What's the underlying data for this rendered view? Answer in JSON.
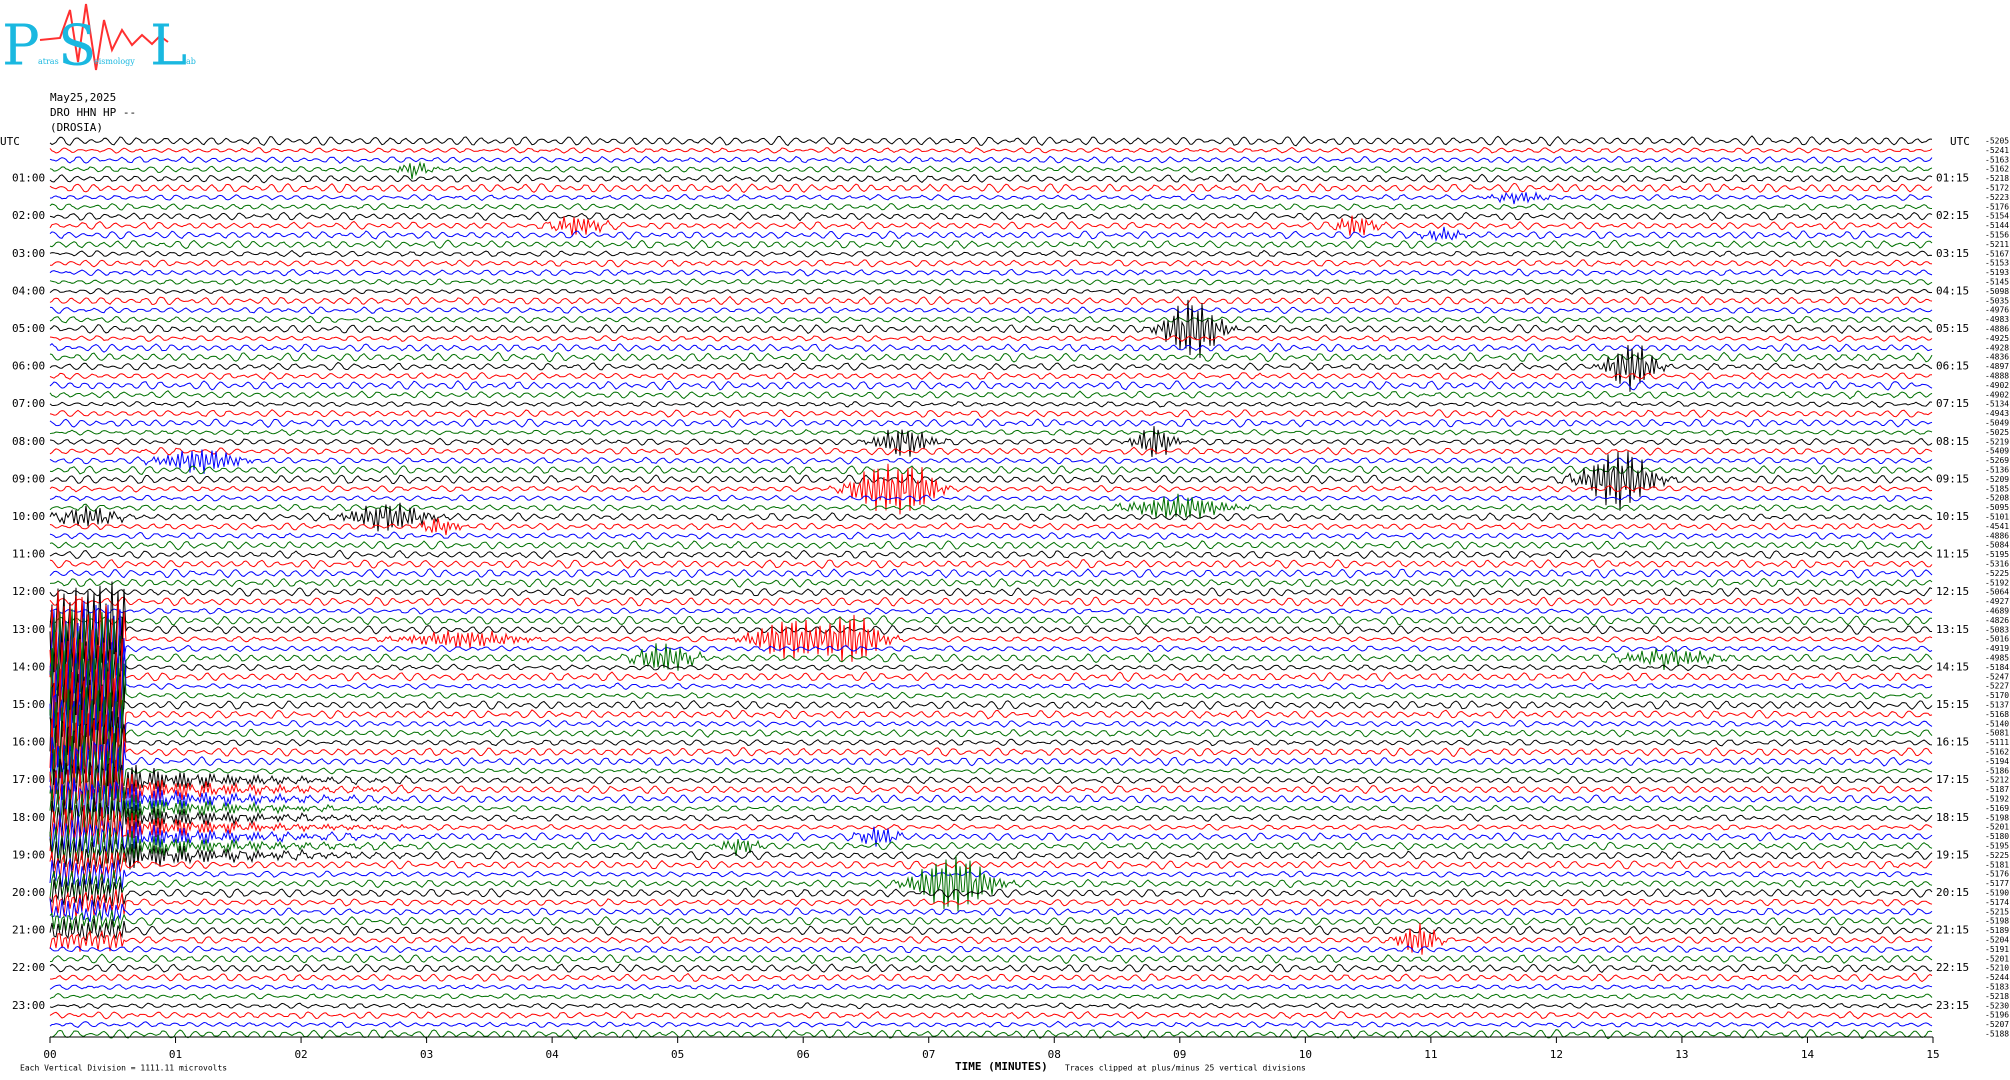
{
  "logo": {
    "p": "P",
    "p_rest": "atras",
    "s": "S",
    "s_rest": "eismology",
    "l": "L",
    "l_rest": "ab"
  },
  "header": {
    "date": "May25,2025",
    "station": "DRO HHN HP --",
    "site": "(DROSIA)"
  },
  "left_axis": {
    "title": "UTC",
    "labels": [
      "01:00",
      "02:00",
      "03:00",
      "04:00",
      "05:00",
      "06:00",
      "07:00",
      "08:00",
      "09:00",
      "10:00",
      "11:00",
      "12:00",
      "13:00",
      "14:00",
      "15:00",
      "16:00",
      "17:00",
      "18:00",
      "19:00",
      "20:00",
      "21:00",
      "22:00",
      "23:00"
    ]
  },
  "right_axis": {
    "title": "UTC",
    "labels": [
      "01:15",
      "02:15",
      "03:15",
      "04:15",
      "05:15",
      "06:15",
      "07:15",
      "08:15",
      "09:15",
      "10:15",
      "11:15",
      "12:15",
      "13:15",
      "14:15",
      "15:15",
      "16:15",
      "17:15",
      "18:15",
      "19:15",
      "20:15",
      "21:15",
      "22:15",
      "23:15"
    ]
  },
  "trace_offsets": [
    "-5205",
    "-5241",
    "-5163",
    "-5162",
    "-5218",
    "-5172",
    "-5223",
    "-5176",
    "-5154",
    "-5144",
    "-5156",
    "-5211",
    "-5167",
    "-5153",
    "-5193",
    "-5145",
    "-5098",
    "-5035",
    "-4976",
    "-4983",
    "-4886",
    "-4925",
    "-4928",
    "-4836",
    "-4897",
    "-4888",
    "-4902",
    "-4902",
    "-5134",
    "-4943",
    "-5049",
    "-5025",
    "-5219",
    "-5409",
    "-5269",
    "-5136",
    "-5209",
    "-5185",
    "-5208",
    "-5095",
    "-5101",
    "-4541",
    "-4886",
    "-5084",
    "-5195",
    "-5316",
    "-5225",
    "-5192",
    "-5064",
    "-4927",
    "-4689",
    "-4826",
    "-5083",
    "-5016",
    "-4919",
    "-4985",
    "-5184",
    "-5247",
    "-5227",
    "-5170",
    "-5137",
    "-5168",
    "-5140",
    "-5081",
    "-5111",
    "-5162",
    "-5194",
    "-5186",
    "-5212",
    "-5187",
    "-5192",
    "-5169",
    "-5198",
    "-5201",
    "-5180",
    "-5195",
    "-5225",
    "-5181",
    "-5176",
    "-5177",
    "-5190",
    "-5174",
    "-5215",
    "-5198",
    "-5189",
    "-5204",
    "-5191",
    "-5201",
    "-5210",
    "-5244",
    "-5183",
    "-5218",
    "-5230",
    "-5196",
    "-5207",
    "-5188"
  ],
  "trace_colors": [
    "#000000",
    "#ff0000",
    "#0000ff",
    "#007000"
  ],
  "time_axis": {
    "labels": [
      "00",
      "01",
      "02",
      "03",
      "04",
      "05",
      "06",
      "07",
      "08",
      "09",
      "10",
      "11",
      "12",
      "13",
      "14",
      "15"
    ],
    "title": "TIME (MINUTES)"
  },
  "notes": {
    "scale": "Each Vertical Division = 1111.11 microvolts",
    "clip": "Traces clipped at plus/minus 25 vertical divisions"
  }
}
